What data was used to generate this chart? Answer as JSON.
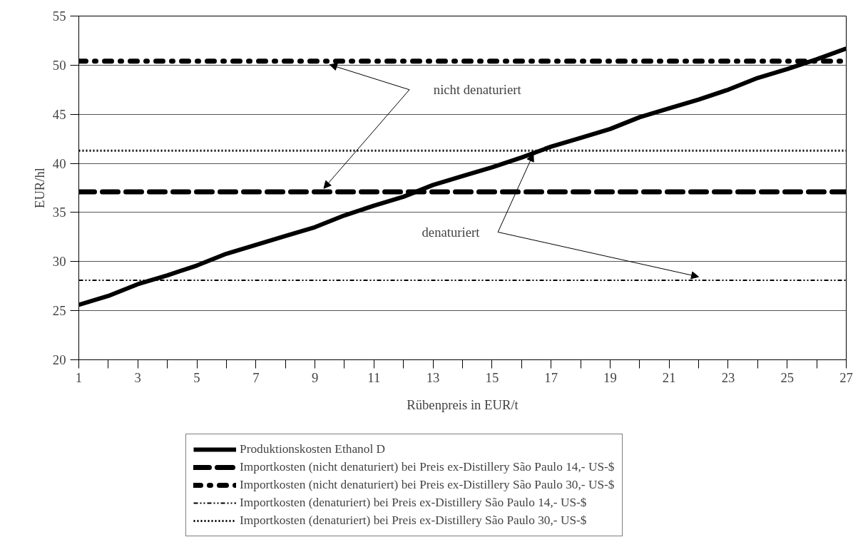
{
  "chart_data": {
    "type": "line",
    "xlabel": "Rübenpreis in EUR/t",
    "ylabel": "EUR/hl",
    "x": [
      1,
      2,
      3,
      4,
      5,
      6,
      7,
      8,
      9,
      10,
      11,
      12,
      13,
      14,
      15,
      16,
      17,
      18,
      19,
      20,
      21,
      22,
      23,
      24,
      25,
      26,
      27
    ],
    "xlim": [
      1,
      27
    ],
    "xticks": [
      1,
      {
        "value": 2,
        "label": null
      },
      3,
      {
        "value": 4,
        "label": null
      },
      5,
      {
        "value": 6,
        "label": null
      },
      7,
      {
        "value": 8,
        "label": null
      },
      9,
      {
        "value": 10,
        "label": null
      },
      11,
      {
        "value": 12,
        "label": null
      },
      13,
      {
        "value": 14,
        "label": null
      },
      15,
      {
        "value": 16,
        "label": null
      },
      17,
      {
        "value": 18,
        "label": null
      },
      19,
      {
        "value": 20,
        "label": null
      },
      21,
      {
        "value": 22,
        "label": null
      },
      23,
      {
        "value": 24,
        "label": null
      },
      25,
      {
        "value": 26,
        "label": null
      },
      27
    ],
    "ylim": [
      20,
      55
    ],
    "yticks": [
      20,
      25,
      30,
      35,
      40,
      45,
      50,
      55
    ],
    "grid": "y",
    "legend": "bottom",
    "series": [
      {
        "name": "Produktionskosten Ethanol D",
        "color": "#000000",
        "line_style": "solid",
        "values": [
          25.6,
          26.5,
          27.7,
          28.6,
          29.6,
          30.8,
          31.7,
          32.6,
          33.5,
          34.7,
          35.7,
          36.6,
          37.8,
          38.7,
          39.6,
          40.6,
          41.7,
          42.6,
          43.5,
          44.7,
          45.6,
          46.5,
          47.5,
          48.7,
          49.6,
          50.6,
          51.7
        ]
      },
      {
        "name": "Importkosten (nicht denaturiert) bei Preis ex-Distillery São Paulo 14,- US-$",
        "color": "#000000",
        "line_style": "dashed",
        "values": [
          37.1,
          37.1,
          37.1,
          37.1,
          37.1,
          37.1,
          37.1,
          37.1,
          37.1,
          37.1,
          37.1,
          37.1,
          37.1,
          37.1,
          37.1,
          37.1,
          37.1,
          37.1,
          37.1,
          37.1,
          37.1,
          37.1,
          37.1,
          37.1,
          37.1,
          37.1,
          37.1
        ]
      },
      {
        "name": "Importkosten (nicht denaturiert) bei Preis ex-Distillery São Paulo 30,- US-$",
        "color": "#000000",
        "line_style": "dashdot",
        "values": [
          50.4,
          50.4,
          50.4,
          50.4,
          50.4,
          50.4,
          50.4,
          50.4,
          50.4,
          50.4,
          50.4,
          50.4,
          50.4,
          50.4,
          50.4,
          50.4,
          50.4,
          50.4,
          50.4,
          50.4,
          50.4,
          50.4,
          50.4,
          50.4,
          50.4,
          50.4,
          50.4
        ]
      },
      {
        "name": "Importkosten (denaturiert) bei Preis ex-Distillery São Paulo 14,- US-$",
        "color": "#000000",
        "line_style": "dashdotdot",
        "values": [
          28.1,
          28.1,
          28.1,
          28.1,
          28.1,
          28.1,
          28.1,
          28.1,
          28.1,
          28.1,
          28.1,
          28.1,
          28.1,
          28.1,
          28.1,
          28.1,
          28.1,
          28.1,
          28.1,
          28.1,
          28.1,
          28.1,
          28.1,
          28.1,
          28.1,
          28.1,
          28.1
        ]
      },
      {
        "name": "Importkosten (denaturiert) bei Preis ex-Distillery São Paulo 30,- US-$",
        "color": "#000000",
        "line_style": "dotted",
        "values": [
          41.3,
          41.3,
          41.3,
          41.3,
          41.3,
          41.3,
          41.3,
          41.3,
          41.3,
          41.3,
          41.3,
          41.3,
          41.3,
          41.3,
          41.3,
          41.3,
          41.3,
          41.3,
          41.3,
          41.3,
          41.3,
          41.3,
          41.3,
          41.3,
          41.3,
          41.3,
          41.3
        ]
      }
    ],
    "annotations": [
      "nicht denaturiert",
      "denaturiert"
    ]
  }
}
